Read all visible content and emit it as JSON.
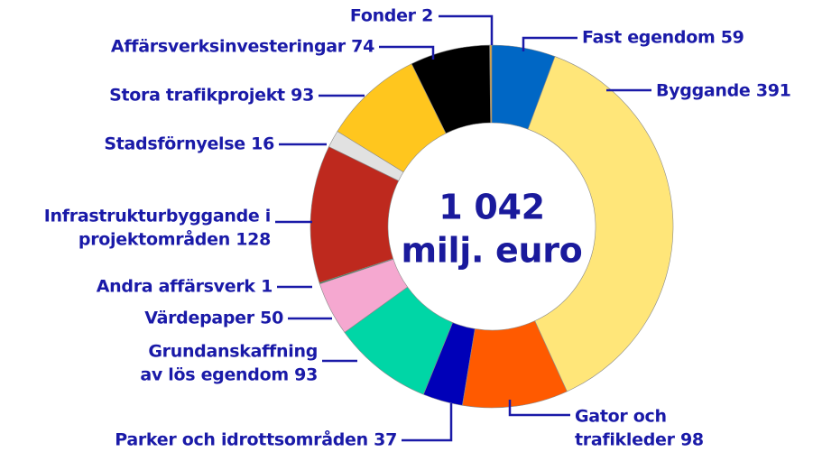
{
  "chart_data": {
    "type": "donut",
    "labels": [
      [
        "Fast egendom 59"
      ],
      [
        "Byggande 391"
      ],
      [
        "Gator och",
        "trafikleder 98"
      ],
      [
        "Parker och idrottsområden 37"
      ],
      [
        "Grundanskaffning",
        "av lös egendom 93"
      ],
      [
        "Värdepaper 50"
      ],
      [
        "Andra affärsverk 1"
      ],
      [
        "Infrastrukturbyggande i",
        "projektområden 128"
      ],
      [
        "Stadsförnyelse 16"
      ],
      [
        "Stora trafikprojekt 93"
      ],
      [
        "Affärsverksinvesteringar 74"
      ],
      [
        "Fonder  2"
      ]
    ],
    "values": [
      59,
      391,
      98,
      37,
      93,
      50,
      1,
      128,
      16,
      93,
      74,
      2
    ],
    "colors": [
      "#0067c5",
      "#ffe679",
      "#ff5a00",
      "#0000b8",
      "#00d6a6",
      "#f5a8d0",
      "#00873e",
      "#be291e",
      "#e1e1e1",
      "#ffc61e",
      "#000000",
      "#d9a441"
    ],
    "center_label": [
      "1 042",
      "milj. euro"
    ]
  }
}
